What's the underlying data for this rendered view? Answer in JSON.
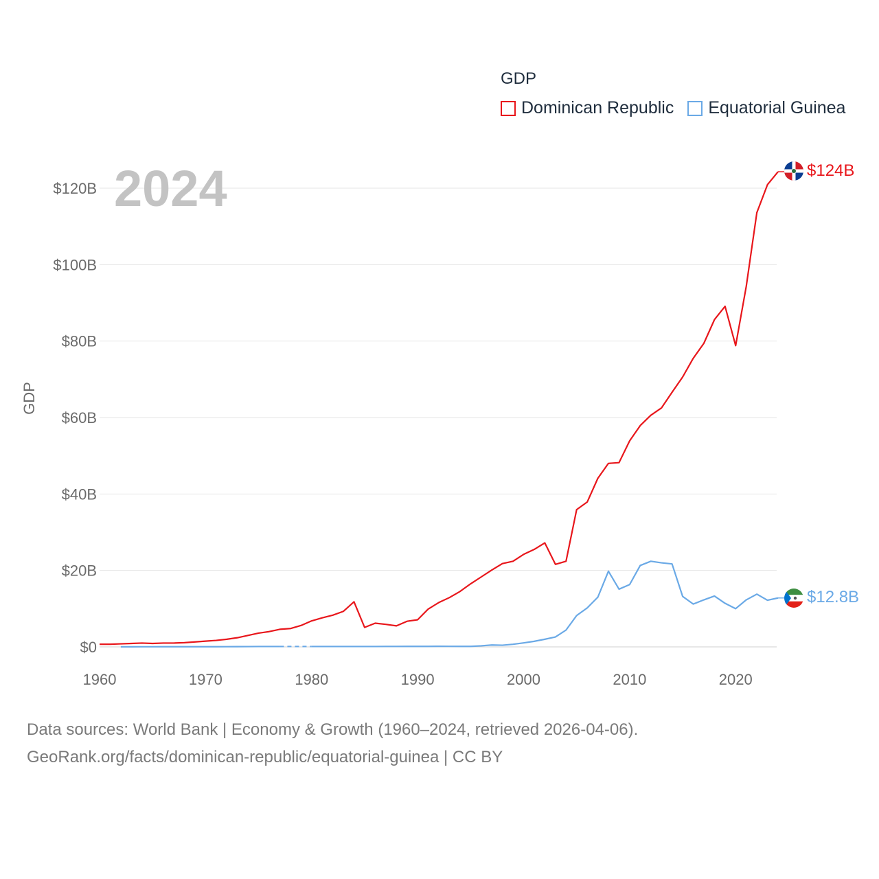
{
  "chart_data": {
    "type": "line",
    "legend_title": "GDP",
    "ylabel": "GDP",
    "year_label": "2024",
    "x_ticks": [
      1960,
      1970,
      1980,
      1990,
      2000,
      2010,
      2020
    ],
    "y_ticks": [
      "$0",
      "$20B",
      "$40B",
      "$60B",
      "$80B",
      "$100B",
      "$120B"
    ],
    "y_tick_values": [
      0,
      20,
      40,
      60,
      80,
      100,
      120
    ],
    "ylim": [
      0,
      124
    ],
    "xlim": [
      1960,
      2024
    ],
    "colors": {
      "dominican_republic": "#e8161b",
      "equatorial_guinea": "#6aa9e6"
    },
    "series": [
      {
        "name": "Dominican Republic",
        "end_label": "$124B",
        "x": [
          1960,
          1961,
          1962,
          1963,
          1964,
          1965,
          1966,
          1967,
          1968,
          1969,
          1970,
          1971,
          1972,
          1973,
          1974,
          1975,
          1976,
          1977,
          1978,
          1979,
          1980,
          1981,
          1982,
          1983,
          1984,
          1985,
          1986,
          1987,
          1988,
          1989,
          1990,
          1991,
          1992,
          1993,
          1994,
          1995,
          1996,
          1997,
          1998,
          1999,
          2000,
          2001,
          2002,
          2003,
          2004,
          2005,
          2006,
          2007,
          2008,
          2009,
          2010,
          2011,
          2012,
          2013,
          2014,
          2015,
          2016,
          2017,
          2018,
          2019,
          2020,
          2021,
          2022,
          2023,
          2024
        ],
        "values": [
          0.7,
          0.7,
          0.8,
          0.9,
          1.0,
          0.9,
          1.0,
          1.0,
          1.1,
          1.3,
          1.5,
          1.7,
          2.0,
          2.4,
          3.0,
          3.6,
          4.0,
          4.6,
          4.8,
          5.6,
          6.8,
          7.6,
          8.3,
          9.3,
          11.8,
          5.1,
          6.2,
          5.9,
          5.5,
          6.7,
          7.1,
          9.9,
          11.6,
          12.9,
          14.5,
          16.5,
          18.3,
          20.1,
          21.8,
          22.4,
          24.2,
          25.5,
          27.2,
          21.6,
          22.4,
          35.9,
          37.9,
          44.1,
          48.0,
          48.2,
          53.9,
          57.9,
          60.6,
          62.5,
          66.6,
          70.6,
          75.5,
          79.4,
          85.6,
          89.1,
          78.8,
          94.3,
          113.6,
          120.9,
          124.3
        ]
      },
      {
        "name": "Equatorial Guinea",
        "end_label": "$12.8B",
        "gap_years": [
          1977,
          1980
        ],
        "x": [
          1962,
          1963,
          1964,
          1965,
          1966,
          1967,
          1968,
          1969,
          1970,
          1971,
          1972,
          1973,
          1974,
          1975,
          1976,
          1977,
          1978,
          1979,
          1980,
          1981,
          1982,
          1983,
          1984,
          1985,
          1986,
          1987,
          1988,
          1989,
          1990,
          1991,
          1992,
          1993,
          1994,
          1995,
          1996,
          1997,
          1998,
          1999,
          2000,
          2001,
          2002,
          2003,
          2004,
          2005,
          2006,
          2007,
          2008,
          2009,
          2010,
          2011,
          2012,
          2013,
          2014,
          2015,
          2016,
          2017,
          2018,
          2019,
          2020,
          2021,
          2022,
          2023,
          2024
        ],
        "values": [
          0.02,
          0.02,
          0.03,
          0.03,
          0.04,
          0.04,
          0.04,
          0.04,
          0.05,
          0.05,
          0.06,
          0.07,
          0.08,
          0.1,
          0.1,
          0.1,
          0.1,
          0.1,
          0.1,
          0.1,
          0.1,
          0.1,
          0.1,
          0.1,
          0.1,
          0.12,
          0.12,
          0.13,
          0.13,
          0.13,
          0.16,
          0.15,
          0.13,
          0.14,
          0.28,
          0.5,
          0.44,
          0.68,
          1.05,
          1.46,
          2.0,
          2.6,
          4.4,
          8.2,
          10.2,
          13.0,
          19.8,
          15.1,
          16.3,
          21.3,
          22.4,
          22.0,
          21.7,
          13.2,
          11.2,
          12.3,
          13.3,
          11.4,
          10.0,
          12.3,
          13.8,
          12.2,
          12.8
        ]
      }
    ]
  },
  "footer": {
    "line1": "Data sources: World Bank | Economy & Growth (1960–2024, retrieved 2026-04-06).",
    "line2": "GeoRank.org/facts/dominican-republic/equatorial-guinea | CC BY"
  }
}
